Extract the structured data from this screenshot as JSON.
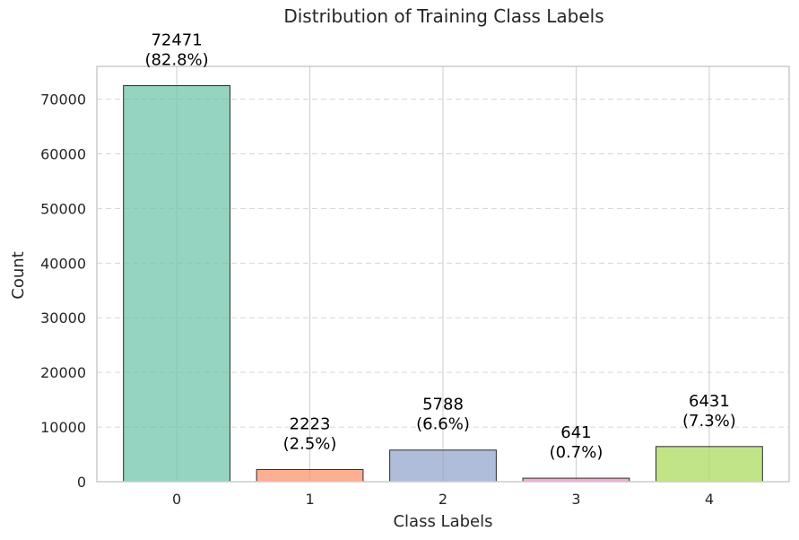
{
  "chart_data": {
    "type": "bar",
    "title": "Distribution of Training Class Labels",
    "xlabel": "Class Labels",
    "ylabel": "Count",
    "categories": [
      "0",
      "1",
      "2",
      "3",
      "4"
    ],
    "values": [
      72471,
      2223,
      5788,
      641,
      6431
    ],
    "data_labels": [
      [
        "72471",
        "(82.8%)"
      ],
      [
        "2223",
        "(2.5%)"
      ],
      [
        "5788",
        "(6.6%)"
      ],
      [
        "641",
        "(0.7%)"
      ],
      [
        "6431",
        "(7.3%)"
      ]
    ],
    "colors": [
      "#66c2a5",
      "#fc8d62",
      "#8da0cb",
      "#e78ac3",
      "#a6d854"
    ],
    "ylim": [
      0,
      76000
    ],
    "yticks": [
      0,
      10000,
      20000,
      30000,
      40000,
      50000,
      60000,
      70000
    ],
    "ytick_labels": [
      "0",
      "10000",
      "20000",
      "30000",
      "40000",
      "50000",
      "60000",
      "70000"
    ],
    "grid": true,
    "legend": "none"
  }
}
